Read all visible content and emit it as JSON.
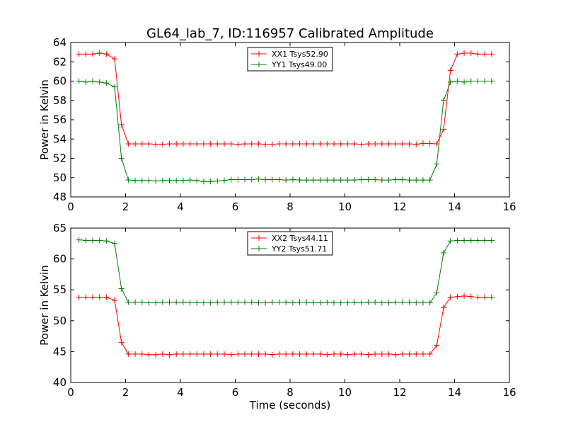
{
  "title": "GL64_lab_7, ID:116957 Calibrated Amplitude",
  "colors": {
    "xx": "#ff0000",
    "yy": "#008000"
  },
  "chart_data": [
    {
      "type": "line",
      "ylabel": "Power in Kelvin",
      "xlabel": "",
      "xlim": [
        0,
        16
      ],
      "ylim": [
        48,
        64
      ],
      "xticks": [
        0,
        2,
        4,
        6,
        8,
        10,
        12,
        14,
        16
      ],
      "yticks": [
        48,
        50,
        52,
        54,
        56,
        58,
        60,
        62,
        64
      ],
      "legend": "top-center",
      "series": [
        {
          "name": "XX1 Tsys52.90",
          "color": "#ff0000",
          "x": [
            0.3,
            0.55,
            0.8,
            1.05,
            1.3,
            1.6,
            1.85,
            2.1,
            2.35,
            2.6,
            2.85,
            3.1,
            3.35,
            3.6,
            3.85,
            4.1,
            4.35,
            4.6,
            4.85,
            5.1,
            5.35,
            5.6,
            5.85,
            6.1,
            6.35,
            6.6,
            6.85,
            7.1,
            7.35,
            7.6,
            7.85,
            8.1,
            8.35,
            8.6,
            8.85,
            9.1,
            9.35,
            9.6,
            9.85,
            10.1,
            10.35,
            10.6,
            10.85,
            11.1,
            11.35,
            11.6,
            11.85,
            12.1,
            12.35,
            12.6,
            12.85,
            13.1,
            13.35,
            13.6,
            13.85,
            14.1,
            14.35,
            14.6,
            14.85,
            15.1,
            15.35
          ],
          "y": [
            62.8,
            62.8,
            62.8,
            62.9,
            62.8,
            62.3,
            55.5,
            53.5,
            53.5,
            53.5,
            53.5,
            53.45,
            53.45,
            53.5,
            53.5,
            53.5,
            53.5,
            53.5,
            53.5,
            53.5,
            53.5,
            53.5,
            53.5,
            53.45,
            53.5,
            53.5,
            53.5,
            53.45,
            53.45,
            53.5,
            53.5,
            53.5,
            53.5,
            53.5,
            53.5,
            53.5,
            53.5,
            53.5,
            53.5,
            53.5,
            53.5,
            53.45,
            53.5,
            53.5,
            53.5,
            53.5,
            53.5,
            53.5,
            53.5,
            53.45,
            53.55,
            53.55,
            53.5,
            55.0,
            61.1,
            62.8,
            62.9,
            62.9,
            62.8,
            62.8,
            62.8
          ]
        },
        {
          "name": "YY1 Tsys49.00",
          "color": "#008000",
          "x": [
            0.3,
            0.55,
            0.8,
            1.05,
            1.3,
            1.6,
            1.85,
            2.1,
            2.35,
            2.6,
            2.85,
            3.1,
            3.35,
            3.6,
            3.85,
            4.1,
            4.35,
            4.6,
            4.85,
            5.1,
            5.35,
            5.6,
            5.85,
            6.1,
            6.35,
            6.6,
            6.85,
            7.1,
            7.35,
            7.6,
            7.85,
            8.1,
            8.35,
            8.6,
            8.85,
            9.1,
            9.35,
            9.6,
            9.85,
            10.1,
            10.35,
            10.6,
            10.85,
            11.1,
            11.35,
            11.6,
            11.85,
            12.1,
            12.35,
            12.6,
            12.85,
            13.1,
            13.35,
            13.6,
            13.85,
            14.1,
            14.35,
            14.6,
            14.85,
            15.1,
            15.35
          ],
          "y": [
            60.0,
            59.9,
            60.0,
            59.9,
            59.8,
            59.4,
            52.0,
            49.75,
            49.7,
            49.7,
            49.7,
            49.65,
            49.7,
            49.7,
            49.7,
            49.7,
            49.75,
            49.7,
            49.6,
            49.6,
            49.65,
            49.7,
            49.8,
            49.8,
            49.8,
            49.8,
            49.85,
            49.8,
            49.8,
            49.8,
            49.75,
            49.8,
            49.75,
            49.75,
            49.75,
            49.75,
            49.75,
            49.75,
            49.75,
            49.75,
            49.75,
            49.8,
            49.8,
            49.8,
            49.75,
            49.75,
            49.8,
            49.8,
            49.75,
            49.75,
            49.75,
            49.75,
            51.4,
            58.0,
            59.9,
            60.0,
            59.9,
            60.0,
            60.0,
            60.0,
            60.0
          ]
        }
      ]
    },
    {
      "type": "line",
      "ylabel": "Power in Kelvin",
      "xlabel": "Time (seconds)",
      "xlim": [
        0,
        16
      ],
      "ylim": [
        40,
        65
      ],
      "xticks": [
        0,
        2,
        4,
        6,
        8,
        10,
        12,
        14,
        16
      ],
      "yticks": [
        40,
        45,
        50,
        55,
        60,
        65
      ],
      "legend": "top-center",
      "series": [
        {
          "name": "XX2 Tsys44.11",
          "color": "#ff0000",
          "x": [
            0.3,
            0.55,
            0.8,
            1.05,
            1.3,
            1.6,
            1.85,
            2.1,
            2.35,
            2.6,
            2.85,
            3.1,
            3.35,
            3.6,
            3.85,
            4.1,
            4.35,
            4.6,
            4.85,
            5.1,
            5.35,
            5.6,
            5.85,
            6.1,
            6.35,
            6.6,
            6.85,
            7.1,
            7.35,
            7.6,
            7.85,
            8.1,
            8.35,
            8.6,
            8.85,
            9.1,
            9.35,
            9.6,
            9.85,
            10.1,
            10.35,
            10.6,
            10.85,
            11.1,
            11.35,
            11.6,
            11.85,
            12.1,
            12.35,
            12.6,
            12.85,
            13.1,
            13.35,
            13.6,
            13.85,
            14.1,
            14.35,
            14.6,
            14.85,
            15.1,
            15.35
          ],
          "y": [
            53.8,
            53.8,
            53.8,
            53.8,
            53.8,
            53.3,
            46.5,
            44.6,
            44.6,
            44.6,
            44.5,
            44.5,
            44.6,
            44.5,
            44.6,
            44.6,
            44.6,
            44.6,
            44.6,
            44.6,
            44.6,
            44.6,
            44.5,
            44.6,
            44.6,
            44.6,
            44.6,
            44.6,
            44.5,
            44.6,
            44.6,
            44.6,
            44.6,
            44.6,
            44.6,
            44.6,
            44.5,
            44.6,
            44.6,
            44.5,
            44.6,
            44.6,
            44.5,
            44.6,
            44.6,
            44.6,
            44.5,
            44.6,
            44.6,
            44.6,
            44.6,
            44.6,
            46.0,
            52.1,
            53.8,
            53.9,
            54.0,
            53.9,
            53.8,
            53.8,
            53.8
          ]
        },
        {
          "name": "YY2 Tsys51.71",
          "color": "#008000",
          "x": [
            0.3,
            0.55,
            0.8,
            1.05,
            1.3,
            1.6,
            1.85,
            2.1,
            2.35,
            2.6,
            2.85,
            3.1,
            3.35,
            3.6,
            3.85,
            4.1,
            4.35,
            4.6,
            4.85,
            5.1,
            5.35,
            5.6,
            5.85,
            6.1,
            6.35,
            6.6,
            6.85,
            7.1,
            7.35,
            7.6,
            7.85,
            8.1,
            8.35,
            8.6,
            8.85,
            9.1,
            9.35,
            9.6,
            9.85,
            10.1,
            10.35,
            10.6,
            10.85,
            11.1,
            11.35,
            11.6,
            11.85,
            12.1,
            12.35,
            12.6,
            12.85,
            13.1,
            13.35,
            13.6,
            13.85,
            14.1,
            14.35,
            14.6,
            14.85,
            15.1,
            15.35
          ],
          "y": [
            63.1,
            63.0,
            63.0,
            63.0,
            62.9,
            62.5,
            55.2,
            53.0,
            53.0,
            53.0,
            52.9,
            52.9,
            53.0,
            53.0,
            53.0,
            53.0,
            52.9,
            52.9,
            52.9,
            52.9,
            53.0,
            53.0,
            53.0,
            53.0,
            53.0,
            53.0,
            52.9,
            52.9,
            53.0,
            53.0,
            53.0,
            52.9,
            53.0,
            53.0,
            52.9,
            52.9,
            53.0,
            52.9,
            52.9,
            52.9,
            53.0,
            52.9,
            53.0,
            53.0,
            52.9,
            52.9,
            53.0,
            53.0,
            53.0,
            52.9,
            52.9,
            52.9,
            54.5,
            61.0,
            62.9,
            63.0,
            63.0,
            63.0,
            63.0,
            63.0,
            63.0
          ]
        }
      ]
    }
  ]
}
